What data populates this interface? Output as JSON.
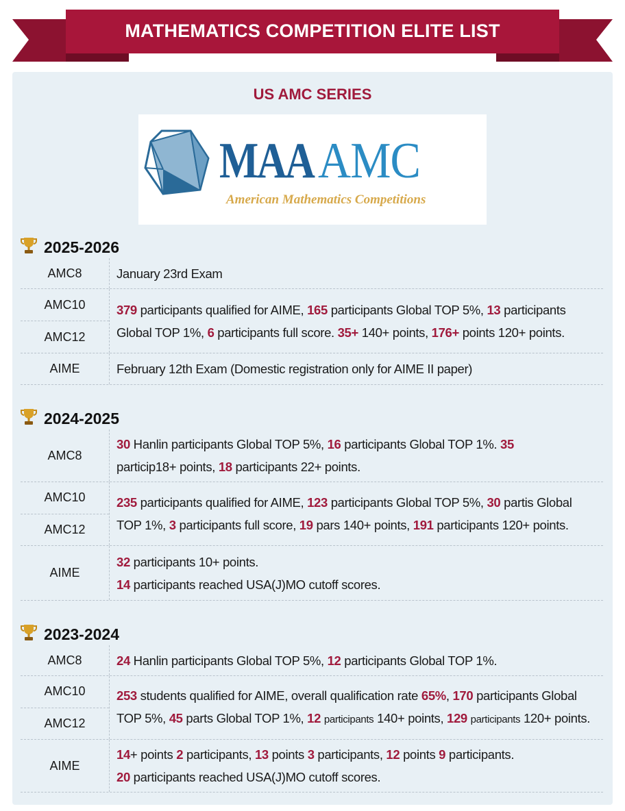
{
  "header": {
    "title": "MATHEMATICS COMPETITION ELITE LIST"
  },
  "series_title": "US AMC SERIES",
  "logo": {
    "main": "MAA",
    "secondary": "AMC",
    "subtitle": "American Mathematics Competitions"
  },
  "colors": {
    "banner": "#a8163a",
    "highlight": "#a01a3c",
    "panel": "#e8f0f5"
  },
  "sections": [
    {
      "year": "2025-2026",
      "icon": "trophy-icon",
      "rows": [
        {
          "labels": [
            "AMC8"
          ],
          "lines": [
            [
              {
                "t": "January 23rd Exam"
              }
            ]
          ]
        },
        {
          "labels": [
            "AMC10",
            "AMC12"
          ],
          "lines": [
            [
              {
                "t": "379",
                "h": 1
              },
              {
                "t": " participants qualified for AIME, "
              },
              {
                "t": "165",
                "h": 1
              },
              {
                "t": " participants Global TOP 5%, "
              },
              {
                "t": "13",
                "h": 1
              },
              {
                "t": " participants"
              }
            ],
            [
              {
                "t": "Global TOP 1%, "
              },
              {
                "t": "6",
                "h": 1
              },
              {
                "t": " participants full score. "
              },
              {
                "t": "35+",
                "h": 1
              },
              {
                "t": " 140+ points, "
              },
              {
                "t": "176+",
                "h": 1
              },
              {
                "t": " points 120+ points."
              }
            ]
          ]
        },
        {
          "labels": [
            "AIME"
          ],
          "lines": [
            [
              {
                "t": "February 12th Exam (Domestic registration only for AIME II paper)"
              }
            ]
          ]
        }
      ]
    },
    {
      "year": "2024-2025",
      "icon": "trophy-icon",
      "rows": [
        {
          "labels": [
            "AMC8"
          ],
          "lines": [
            [
              {
                "t": "30",
                "h": 1
              },
              {
                "t": " Hanlin participants Global TOP 5%, "
              },
              {
                "t": "16",
                "h": 1
              },
              {
                "t": " participants Global TOP 1%. "
              },
              {
                "t": "35",
                "h": 1
              }
            ],
            [
              {
                "t": "particip18+ points, "
              },
              {
                "t": "18",
                "h": 1
              },
              {
                "t": " participants 22+ points."
              }
            ]
          ]
        },
        {
          "labels": [
            "AMC10",
            "AMC12"
          ],
          "lines": [
            [
              {
                "t": "235",
                "h": 1
              },
              {
                "t": " participants qualified for AIME, "
              },
              {
                "t": "123",
                "h": 1
              },
              {
                "t": " participants Global TOP 5%, "
              },
              {
                "t": "30",
                "h": 1
              },
              {
                "t": " partis Global"
              }
            ],
            [
              {
                "t": "TOP 1%, "
              },
              {
                "t": "3",
                "h": 1
              },
              {
                "t": " participants full score, "
              },
              {
                "t": "19",
                "h": 1
              },
              {
                "t": " pars 140+ points, "
              },
              {
                "t": "191",
                "h": 1
              },
              {
                "t": " participants 120+ points."
              }
            ]
          ]
        },
        {
          "labels": [
            "AIME"
          ],
          "lines": [
            [
              {
                "t": "32",
                "h": 1
              },
              {
                "t": " participants 10+ points."
              }
            ],
            [
              {
                "t": "14",
                "h": 1
              },
              {
                "t": " participants reached USA(J)MO cutoff scores."
              }
            ]
          ]
        }
      ]
    },
    {
      "year": "2023-2024",
      "icon": "trophy-icon",
      "rows": [
        {
          "labels": [
            "AMC8"
          ],
          "lines": [
            [
              {
                "t": "24",
                "h": 1
              },
              {
                "t": " Hanlin participants Global TOP 5%, "
              },
              {
                "t": "12",
                "h": 1
              },
              {
                "t": " participants Global TOP 1%."
              }
            ]
          ]
        },
        {
          "labels": [
            "AMC10",
            "AMC12"
          ],
          "lines": [
            [
              {
                "t": "253",
                "h": 1
              },
              {
                "t": " students qualified for AIME, overall qualification rate "
              },
              {
                "t": "65%",
                "h": 1
              },
              {
                "t": ", "
              },
              {
                "t": "170",
                "h": 1
              },
              {
                "t": " participants Global"
              }
            ],
            [
              {
                "t": "TOP 5%, "
              },
              {
                "t": "45",
                "h": 1
              },
              {
                "t": " parts Global TOP 1%, "
              },
              {
                "t": "12",
                "h": 1
              },
              {
                "t": " "
              },
              {
                "t": "participants",
                "s": 1
              },
              {
                "t": " 140+ points, "
              },
              {
                "t": "129",
                "h": 1
              },
              {
                "t": " "
              },
              {
                "t": "participants",
                "s": 1
              },
              {
                "t": " 120+ points."
              }
            ]
          ]
        },
        {
          "labels": [
            "AIME"
          ],
          "lines": [
            [
              {
                "t": "14",
                "h": 1
              },
              {
                "t": "+ points "
              },
              {
                "t": "2",
                "h": 1
              },
              {
                "t": " participants, "
              },
              {
                "t": "13",
                "h": 1
              },
              {
                "t": " points "
              },
              {
                "t": "3",
                "h": 1
              },
              {
                "t": " participants, "
              },
              {
                "t": "12",
                "h": 1
              },
              {
                "t": " points "
              },
              {
                "t": "9",
                "h": 1
              },
              {
                "t": " participants."
              }
            ],
            [
              {
                "t": "20",
                "h": 1
              },
              {
                "t": " participants reached USA(J)MO cutoff scores."
              }
            ]
          ]
        }
      ]
    }
  ]
}
